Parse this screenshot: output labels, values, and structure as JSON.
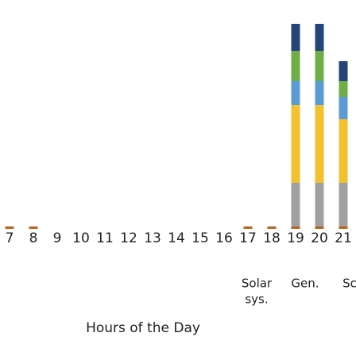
{
  "chart_data": {
    "type": "stacked-bar",
    "x_label": "Hours of the Day",
    "categories": [
      "7",
      "8",
      "9",
      "10",
      "11",
      "12",
      "13",
      "14",
      "15",
      "16",
      "17",
      "18",
      "19",
      "20",
      "21"
    ],
    "ylim": [
      0,
      260
    ],
    "series": [
      {
        "color": "#b5651d",
        "values": [
          3,
          3,
          null,
          null,
          null,
          null,
          null,
          null,
          null,
          null,
          3,
          3,
          3,
          3,
          3
        ]
      },
      {
        "color": "#a0a0a0",
        "values": [
          null,
          null,
          null,
          null,
          null,
          null,
          null,
          null,
          null,
          null,
          null,
          null,
          55,
          55,
          55
        ]
      },
      {
        "color": "#f2c12e",
        "values": [
          null,
          null,
          null,
          null,
          null,
          null,
          null,
          null,
          null,
          null,
          null,
          null,
          98,
          98,
          80
        ]
      },
      {
        "color": "#5b9bd5",
        "values": [
          null,
          null,
          null,
          null,
          null,
          null,
          null,
          null,
          null,
          null,
          null,
          null,
          30,
          30,
          28
        ]
      },
      {
        "color": "#70ad47",
        "values": [
          null,
          null,
          null,
          null,
          null,
          null,
          null,
          null,
          null,
          null,
          null,
          null,
          38,
          38,
          20
        ]
      },
      {
        "color": "#264478",
        "values": [
          null,
          null,
          null,
          null,
          null,
          null,
          null,
          null,
          null,
          null,
          null,
          null,
          34,
          34,
          25
        ]
      }
    ],
    "legend_labels": [
      [
        "Solar",
        "sys."
      ],
      [
        "Gen."
      ],
      [
        "Sc"
      ]
    ]
  }
}
